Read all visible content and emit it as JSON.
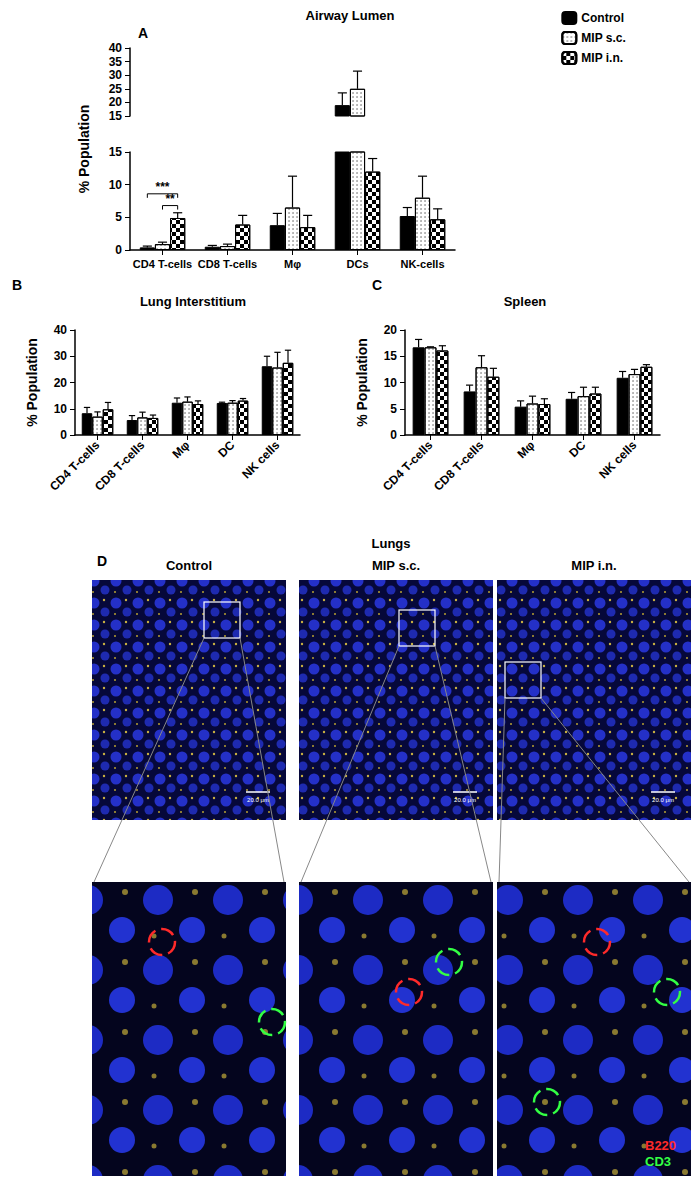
{
  "chart_data": [
    {
      "type": "bar",
      "panel": "A",
      "title": "Airway Lumen",
      "y_label": "% Population",
      "categories": [
        "CD4 T-cells",
        "CD8 T-cells",
        "Mφ",
        "DCs",
        "NK-cells"
      ],
      "ylim": [
        0,
        40
      ],
      "segments": [
        {
          "ylim": [
            0,
            15
          ],
          "yticks": [
            0,
            5,
            10,
            15
          ]
        },
        {
          "ylim": [
            15,
            40
          ],
          "yticks": [
            15,
            20,
            25,
            30,
            35,
            40
          ]
        }
      ],
      "grid": false,
      "legend": "top-right",
      "series": [
        {
          "name": "Control",
          "color": "#000000",
          "values": [
            0.4,
            0.5,
            3.8,
            19,
            5.2
          ],
          "errors": [
            0.2,
            0.2,
            1.8,
            4.5,
            1.3
          ]
        },
        {
          "name": "MIP s.c.",
          "color": "#ffffff",
          "values": [
            0.9,
            0.6,
            6.5,
            25,
            8
          ],
          "errors": [
            0.3,
            0.3,
            4.8,
            6.5,
            3.3
          ]
        },
        {
          "name": "MIP i.n.",
          "color": "#ffffff",
          "values": [
            4.9,
            3.9,
            3.5,
            12,
            4.7
          ],
          "errors": [
            0.8,
            1.4,
            1.8,
            2,
            1.6
          ]
        }
      ],
      "annotations": [
        {
          "category": "CD4 T-cells",
          "from": "Control",
          "to": "MIP i.n.",
          "y": 8.6,
          "label": "***"
        },
        {
          "category": "CD4 T-cells",
          "from": "MIP s.c.",
          "to": "MIP i.n.",
          "y": 6.8,
          "label": "**"
        }
      ]
    },
    {
      "type": "bar",
      "panel": "B",
      "title": "Lung Interstitium",
      "y_label": "% Population",
      "categories": [
        "CD4 T-cells",
        "CD8 T-cells",
        "Mφ",
        "DC",
        "NK cells"
      ],
      "ylim": [
        0,
        40
      ],
      "yticks": [
        0,
        10,
        20,
        30,
        40
      ],
      "grid": false,
      "series": [
        {
          "name": "Control",
          "color": "#000000",
          "values": [
            8.3,
            5.7,
            12.3,
            12.2,
            26.2
          ],
          "errors": [
            2.2,
            1.7,
            1.8,
            0.3,
            3.8
          ]
        },
        {
          "name": "MIP s.c.",
          "color": "#ffffff",
          "values": [
            7,
            6.7,
            12.7,
            12.3,
            25.7
          ],
          "errors": [
            1.8,
            2,
            1.8,
            0.8,
            5.8
          ]
        },
        {
          "name": "MIP i.n.",
          "color": "#ffffff",
          "values": [
            9.8,
            6.5,
            11.8,
            13.1,
            27.5
          ],
          "errors": [
            2.6,
            1.1,
            1.2,
            0.8,
            4.8
          ]
        }
      ]
    },
    {
      "type": "bar",
      "panel": "C",
      "title": "Spleen",
      "y_label": "% Population",
      "categories": [
        "CD4 T-cells",
        "CD8 T-cells",
        "Mφ",
        "DC",
        "NK cells"
      ],
      "ylim": [
        0,
        20
      ],
      "yticks": [
        0,
        5,
        10,
        15,
        20
      ],
      "grid": false,
      "series": [
        {
          "name": "Control",
          "color": "#000000",
          "values": [
            16.7,
            8.3,
            5.4,
            6.9,
            10.9
          ],
          "errors": [
            1.5,
            1.2,
            1.1,
            1.2,
            1.2
          ]
        },
        {
          "name": "MIP s.c.",
          "color": "#ffffff",
          "values": [
            16.7,
            12.9,
            6,
            7.4,
            11.6
          ],
          "errors": [
            0.1,
            2.2,
            1.4,
            1.7,
            0.9
          ]
        },
        {
          "name": "MIP i.n.",
          "color": "#ffffff",
          "values": [
            16.1,
            11.1,
            5.9,
            7.9,
            13
          ],
          "errors": [
            0.9,
            1.6,
            1,
            1.2,
            0.4
          ]
        }
      ]
    }
  ],
  "panel_d": {
    "letter": "D",
    "title": "Lungs",
    "columns": [
      "Control",
      "MIP s.c.",
      "MIP i.n."
    ],
    "scale_bar": "20.0 μm",
    "stains": [
      {
        "label": "B220",
        "color": "#ff2a2a"
      },
      {
        "label": "CD3",
        "color": "#33ff44"
      }
    ]
  }
}
